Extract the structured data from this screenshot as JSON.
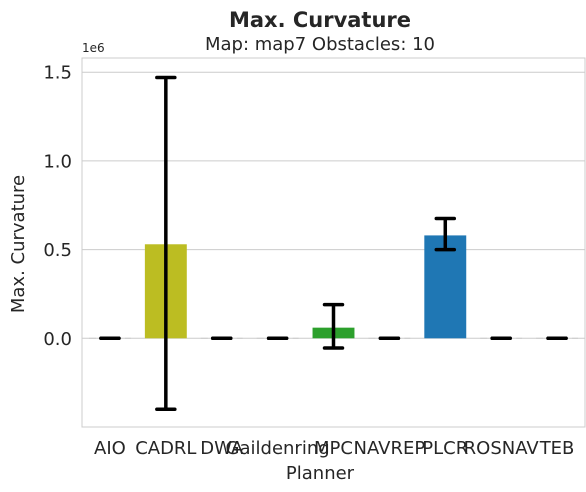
{
  "chart_data": {
    "type": "bar",
    "title": "Max. Curvature",
    "subtitle": "Map: map7 Obstacles: 10",
    "xlabel": "Planner",
    "ylabel": "Max. Curvature",
    "y_offset_label": "1e6",
    "y_scale": 1000000,
    "ylim": [
      -500000,
      1580000
    ],
    "yticks": [
      0,
      0.5,
      1.0,
      1.5
    ],
    "ytick_labels": [
      "0.0",
      "0.5",
      "1.0",
      "1.5"
    ],
    "grid": true,
    "categories": [
      "AIO",
      "CADRL",
      "DWA",
      "Gaildenring",
      "MPC",
      "NAVREP",
      "PLCR",
      "ROSNAV",
      "TEB"
    ],
    "values": [
      0,
      530000,
      0,
      0,
      60000,
      0,
      580000,
      0,
      0
    ],
    "err_low": [
      0,
      -400000,
      0,
      0,
      -55000,
      0,
      500000,
      0,
      0
    ],
    "err_high": [
      0,
      1470000,
      0,
      0,
      190000,
      0,
      675000,
      0,
      0
    ],
    "colors": [
      "#1f77b4",
      "#bcbd22",
      "#1f77b4",
      "#1f77b4",
      "#2ca02c",
      "#1f77b4",
      "#1f77b4",
      "#1f77b4",
      "#1f77b4"
    ]
  }
}
